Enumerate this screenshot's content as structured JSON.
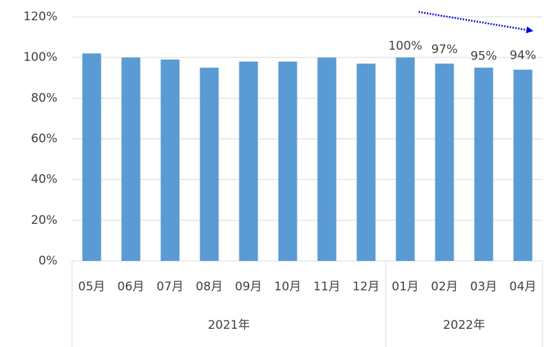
{
  "chart_data": {
    "type": "bar",
    "categories": [
      "05月",
      "06月",
      "07月",
      "08月",
      "09月",
      "10月",
      "11月",
      "12月",
      "01月",
      "02月",
      "03月",
      "04月"
    ],
    "groups": [
      {
        "name": "2021年",
        "span": 8
      },
      {
        "name": "2022年",
        "span": 4
      }
    ],
    "values": [
      102,
      100,
      99,
      95,
      98,
      98,
      100,
      97,
      100,
      97,
      95,
      94
    ],
    "value_labels": [
      null,
      null,
      null,
      null,
      null,
      null,
      null,
      null,
      "100%",
      "97%",
      "95%",
      "94%"
    ],
    "color": "#5b9bd5",
    "ylim": [
      0,
      120
    ],
    "yticks": [
      {
        "value": 0,
        "label": "0%"
      },
      {
        "value": 20,
        "label": "20%"
      },
      {
        "value": 40,
        "label": "40%"
      },
      {
        "value": 60,
        "label": "60%"
      },
      {
        "value": 80,
        "label": "80%"
      },
      {
        "value": 100,
        "label": "100%"
      },
      {
        "value": 120,
        "label": "120%"
      }
    ],
    "grid": true
  }
}
